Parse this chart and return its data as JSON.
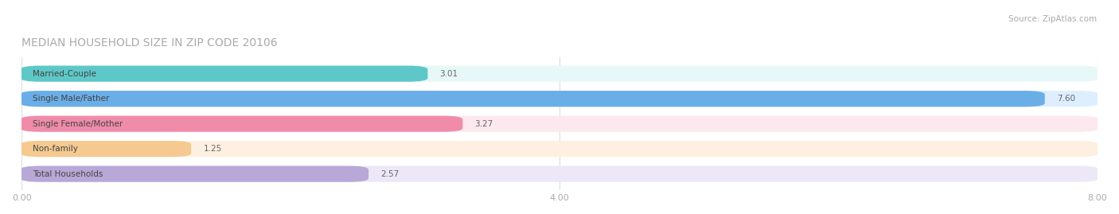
{
  "title": "MEDIAN HOUSEHOLD SIZE IN ZIP CODE 20106",
  "source": "Source: ZipAtlas.com",
  "categories": [
    "Married-Couple",
    "Single Male/Father",
    "Single Female/Mother",
    "Non-family",
    "Total Households"
  ],
  "values": [
    3.01,
    7.6,
    3.27,
    1.25,
    2.57
  ],
  "bar_colors": [
    "#5ec8c8",
    "#6aaee8",
    "#f08caa",
    "#f5c990",
    "#b8a8d8"
  ],
  "bar_bg_colors": [
    "#e8f8f8",
    "#ddeeff",
    "#fde8f0",
    "#fdf0e0",
    "#ece8f8"
  ],
  "label_color": "#888888",
  "title_color": "#aaaaaa",
  "source_color": "#aaaaaa",
  "xlim": [
    0,
    8.0
  ],
  "xticks": [
    0.0,
    4.0,
    8.0
  ],
  "xtick_labels": [
    "0.00",
    "4.00",
    "8.00"
  ],
  "bar_height": 0.62,
  "figsize": [
    14.06,
    2.69
  ],
  "dpi": 100
}
